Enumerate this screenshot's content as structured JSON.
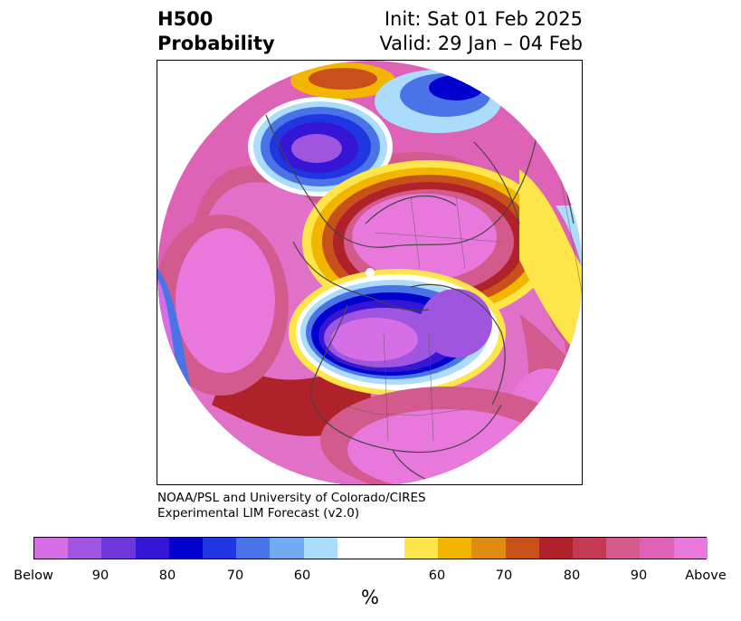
{
  "header": {
    "title_line1": "H500",
    "title_line2": "Probability",
    "init_text": "Init: Sat 01 Feb 2025",
    "valid_text": "Valid: 29 Jan – 04 Feb"
  },
  "credit": {
    "line1": "NOAA/PSL and University of Colorado/CIRES",
    "line2": "Experimental LIM Forecast (v2.0)"
  },
  "colorbar": {
    "unit": "%",
    "colors": [
      "#d66ee6",
      "#a055e0",
      "#6e37dc",
      "#3516d6",
      "#0000cf",
      "#2036e0",
      "#4a73e8",
      "#73abf2",
      "#acdcfb",
      "#ffffff",
      "#ffffff",
      "#fde54a",
      "#f2b600",
      "#df8a10",
      "#c8501a",
      "#b0222a",
      "#c43a55",
      "#d25a8c",
      "#de62b6",
      "#e878dc"
    ],
    "ticks": [
      "Below",
      "90",
      "80",
      "70",
      "60",
      "60",
      "70",
      "80",
      "90",
      "Above"
    ]
  },
  "colors": {
    "below_strong": "#d66ee6",
    "below_mid": "#0000cf",
    "neutral": "#ffffff",
    "above_mid": "#f2b600",
    "above_strong": "#e878dc"
  }
}
